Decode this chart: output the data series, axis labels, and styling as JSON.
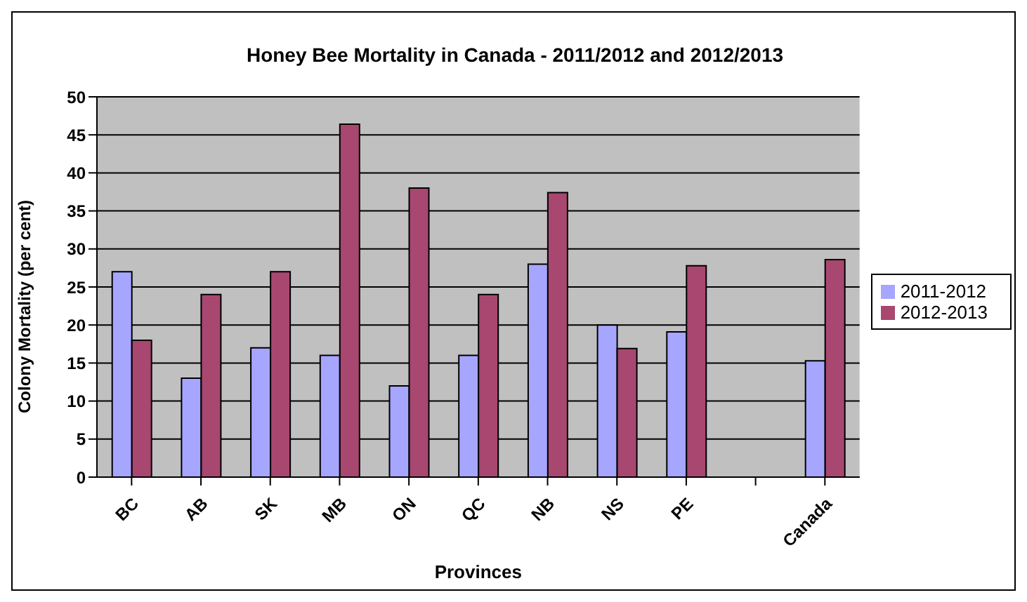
{
  "chart_data": {
    "type": "bar",
    "title": "Honey Bee Mortality in Canada - 2011/2012 and 2012/2013",
    "xlabel": "Provinces",
    "ylabel": "Colony Mortality (per cent)",
    "categories": [
      "BC",
      "AB",
      "SK",
      "MB",
      "ON",
      "QC",
      "NB",
      "NS",
      "PE",
      null,
      "Canada"
    ],
    "series": [
      {
        "name": "2011-2012",
        "color": "#a6a6ff",
        "values": [
          27,
          13,
          17,
          16,
          12,
          16,
          28,
          20,
          19.1,
          null,
          15.3
        ]
      },
      {
        "name": "2012-2013",
        "color": "#a8476f",
        "values": [
          18,
          24,
          27,
          46.4,
          38,
          24,
          37.4,
          16.9,
          27.8,
          null,
          28.6
        ]
      }
    ],
    "ylim": [
      0,
      50
    ],
    "yticks": [
      0,
      5,
      10,
      15,
      20,
      25,
      30,
      35,
      40,
      45,
      50
    ],
    "grid": "y",
    "legend": "right"
  }
}
